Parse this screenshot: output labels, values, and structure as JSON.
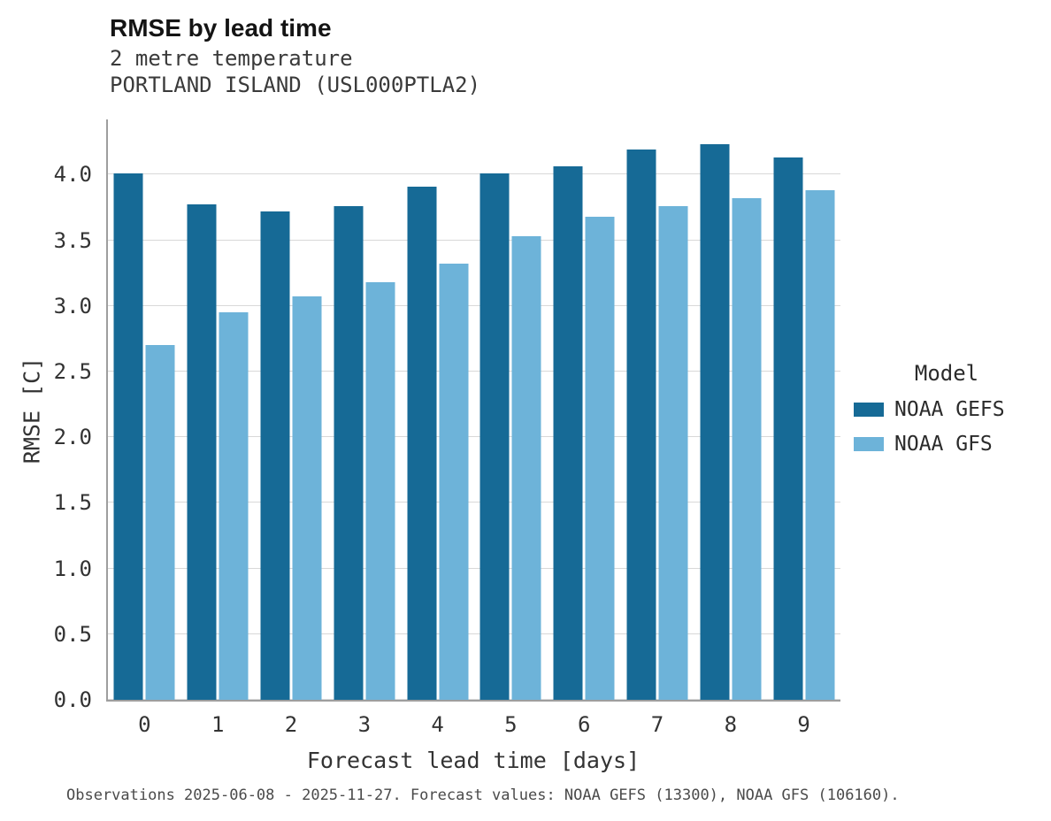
{
  "header": {
    "title": "RMSE by lead time",
    "subtitle_line1": "2 metre temperature",
    "subtitle_line2": "PORTLAND ISLAND (USL000PTLA2)"
  },
  "axes": {
    "xlabel": "Forecast lead time [days]",
    "ylabel": "RMSE [C]"
  },
  "legend": {
    "title": "Model",
    "entries": [
      {
        "label": "NOAA GEFS",
        "color": "#166a96"
      },
      {
        "label": "NOAA GFS",
        "color": "#6db3d9"
      }
    ]
  },
  "footer": {
    "text": "Observations 2025-06-08 - 2025-11-27. Forecast values: NOAA GEFS (13300), NOAA GFS (106160)."
  },
  "chart_data": {
    "type": "bar",
    "title": "RMSE by lead time",
    "subtitle": "2 metre temperature — PORTLAND ISLAND (USL000PTLA2)",
    "categories": [
      0,
      1,
      2,
      3,
      4,
      5,
      6,
      7,
      8,
      9
    ],
    "series": [
      {
        "name": "NOAA GEFS",
        "color": "#166a96",
        "values": [
          4.01,
          3.77,
          3.72,
          3.76,
          3.91,
          4.01,
          4.06,
          4.19,
          4.23,
          4.13
        ]
      },
      {
        "name": "NOAA GFS",
        "color": "#6db3d9",
        "values": [
          2.7,
          2.95,
          3.07,
          3.18,
          3.32,
          3.53,
          3.68,
          3.76,
          3.82,
          3.88
        ]
      }
    ],
    "xlabel": "Forecast lead time [days]",
    "ylabel": "RMSE [C]",
    "ylim": [
      0,
      4.42
    ],
    "yticks": [
      0.0,
      0.5,
      1.0,
      1.5,
      2.0,
      2.5,
      3.0,
      3.5,
      4.0
    ],
    "grid": true,
    "legend_title": "Model",
    "legend_position": "right"
  }
}
